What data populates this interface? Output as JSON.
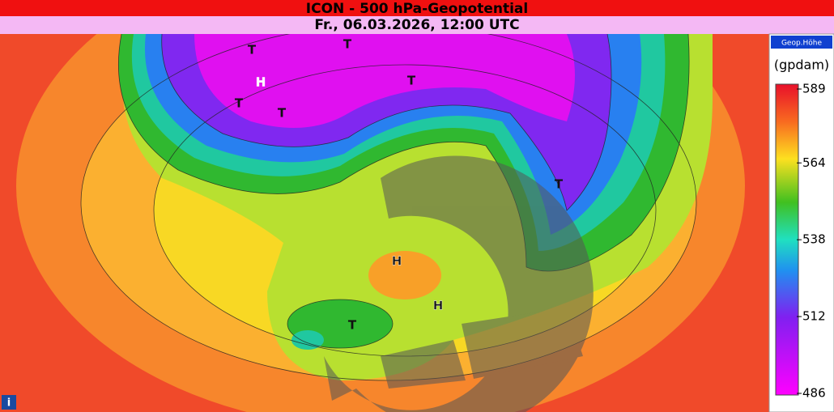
{
  "header": {
    "title": "ICON - 500 hPa-Geopotential",
    "subtitle": "Fr., 06.03.2026, 12:00 UTC"
  },
  "legend": {
    "label": "Geop.Höhe",
    "unit": "(gpdam)",
    "range": [
      486,
      589
    ],
    "ticks": [
      589,
      564,
      538,
      512,
      486
    ]
  },
  "map": {
    "markers": [
      "T",
      "T",
      "H",
      "T",
      "T",
      "T",
      "T",
      "H",
      "H",
      "T"
    ]
  }
}
